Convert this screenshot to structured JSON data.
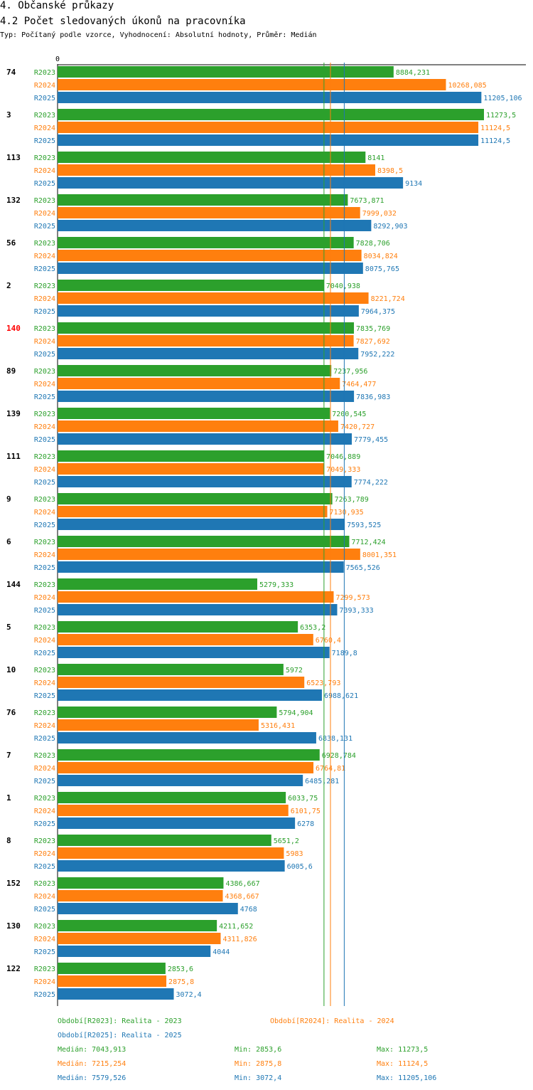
{
  "header": {
    "title": "4. Občanské průkazy",
    "subtitle": "4.2 Počet sledovaných úkonů na pracovníka",
    "description": "Typ: Počítaný podle vzorce, Vyhodnocení: Absolutní hodnoty, Průměr: Medián"
  },
  "colors": {
    "R2023": "#2ca02c",
    "R2024": "#ff7f0e",
    "R2025": "#1f77b4",
    "highlight": "#ff0000",
    "axis": "#000000"
  },
  "chart_data": {
    "type": "bar",
    "orientation": "horizontal",
    "title": "4.2 Počet sledovaných úkonů na pracovníka",
    "axis_zero_label": "0",
    "xlim": [
      0,
      11273.5
    ],
    "highlight_category": "140",
    "series_names": [
      "R2023",
      "R2024",
      "R2025"
    ],
    "categories": [
      {
        "label": "74",
        "values": [
          8884.231,
          10268.085,
          11205.106
        ],
        "texts": [
          "8884,231",
          "10268,085",
          "11205,106"
        ]
      },
      {
        "label": "3",
        "values": [
          11273.5,
          11124.5,
          11124.5
        ],
        "texts": [
          "11273,5",
          "11124,5",
          "11124,5"
        ]
      },
      {
        "label": "113",
        "values": [
          8141,
          8398.5,
          9134
        ],
        "texts": [
          "8141",
          "8398,5",
          "9134"
        ]
      },
      {
        "label": "132",
        "values": [
          7673.871,
          7999.032,
          8292.903
        ],
        "texts": [
          "7673,871",
          "7999,032",
          "8292,903"
        ]
      },
      {
        "label": "56",
        "values": [
          7828.706,
          8034.824,
          8075.765
        ],
        "texts": [
          "7828,706",
          "8034,824",
          "8075,765"
        ]
      },
      {
        "label": "2",
        "values": [
          7040.938,
          8221.724,
          7964.375
        ],
        "texts": [
          "7040,938",
          "8221,724",
          "7964,375"
        ]
      },
      {
        "label": "140",
        "values": [
          7835.769,
          7827.692,
          7952.222
        ],
        "texts": [
          "7835,769",
          "7827,692",
          "7952,222"
        ]
      },
      {
        "label": "89",
        "values": [
          7237.956,
          7464.477,
          7836.983
        ],
        "texts": [
          "7237,956",
          "7464,477",
          "7836,983"
        ]
      },
      {
        "label": "139",
        "values": [
          7200.545,
          7420.727,
          7779.455
        ],
        "texts": [
          "7200,545",
          "7420,727",
          "7779,455"
        ]
      },
      {
        "label": "111",
        "values": [
          7046.889,
          7049.333,
          7774.222
        ],
        "texts": [
          "7046,889",
          "7049,333",
          "7774,222"
        ]
      },
      {
        "label": "9",
        "values": [
          7263.789,
          7130.935,
          7593.525
        ],
        "texts": [
          "7263,789",
          "7130,935",
          "7593,525"
        ]
      },
      {
        "label": "6",
        "values": [
          7712.424,
          8001.351,
          7565.526
        ],
        "texts": [
          "7712,424",
          "8001,351",
          "7565,526"
        ]
      },
      {
        "label": "144",
        "values": [
          5279.333,
          7299.573,
          7393.333
        ],
        "texts": [
          "5279,333",
          "7299,573",
          "7393,333"
        ]
      },
      {
        "label": "5",
        "values": [
          6353.2,
          6760.4,
          7189.8
        ],
        "texts": [
          "6353,2",
          "6760,4",
          "7189,8"
        ]
      },
      {
        "label": "10",
        "values": [
          5972,
          6523.793,
          6988.621
        ],
        "texts": [
          "5972",
          "6523,793",
          "6988,621"
        ]
      },
      {
        "label": "76",
        "values": [
          5794.904,
          5316.431,
          6838.131
        ],
        "texts": [
          "5794,904",
          "5316,431",
          "6838,131"
        ]
      },
      {
        "label": "7",
        "values": [
          6928.784,
          6764.81,
          6485.281
        ],
        "texts": [
          "6928,784",
          "6764,81",
          "6485,281"
        ]
      },
      {
        "label": "1",
        "values": [
          6033.75,
          6101.75,
          6278
        ],
        "texts": [
          "6033,75",
          "6101,75",
          "6278"
        ]
      },
      {
        "label": "8",
        "values": [
          5651.2,
          5983,
          6005.6
        ],
        "texts": [
          "5651,2",
          "5983",
          "6005,6"
        ]
      },
      {
        "label": "152",
        "values": [
          4386.667,
          4368.667,
          4768
        ],
        "texts": [
          "4386,667",
          "4368,667",
          "4768"
        ]
      },
      {
        "label": "130",
        "values": [
          4211.652,
          4311.826,
          4044
        ],
        "texts": [
          "4211,652",
          "4311,826",
          "4044"
        ]
      },
      {
        "label": "122",
        "values": [
          2853.6,
          2875.8,
          3072.4
        ],
        "texts": [
          "2853,6",
          "2875,8",
          "3072,4"
        ]
      }
    ],
    "median_lines": [
      7043.913,
      7215.254,
      7579.526
    ],
    "legend": [
      {
        "series": "R2023",
        "text": "Období[R2023]: Realita - 2023"
      },
      {
        "series": "R2024",
        "text": "Období[R2024]: Realita - 2024"
      },
      {
        "series": "R2025",
        "text": "Období[R2025]: Realita - 2025"
      }
    ],
    "stats": [
      {
        "series": "R2023",
        "median": "Medián: 7043,913",
        "min": "Min: 2853,6",
        "max": "Max: 11273,5"
      },
      {
        "series": "R2024",
        "median": "Medián: 7215,254",
        "min": "Min: 2875,8",
        "max": "Max: 11124,5"
      },
      {
        "series": "R2025",
        "median": "Medián: 7579,526",
        "min": "Min: 3072,4",
        "max": "Max: 11205,106"
      }
    ]
  }
}
